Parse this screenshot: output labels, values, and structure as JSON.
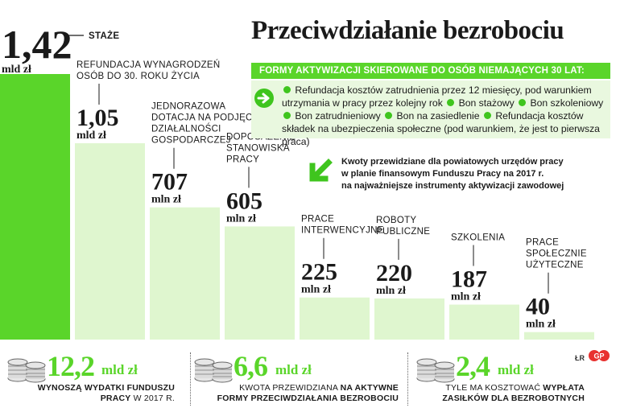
{
  "title": "Przeciwdziałanie bezrobociu",
  "colors": {
    "accent": "#5ad52a",
    "bar_first": "#5ad52a",
    "bar": "#dff6cf",
    "box": "#e9f8df"
  },
  "chart_data": {
    "type": "bar",
    "unit_note": "values in mln zł",
    "categories": [
      "STAŻE",
      "REFUNDACJA WYNAGRODZEŃ OSÓB DO 30. ROKU ŻYCIA",
      "JEDNORAZOWA DOTACJA NA PODJĘCIE DZIAŁALNOŚCI GOSPODARCZEJ",
      "DOPOSAŻENIE STANOWISKA PRACY",
      "PRACE INTERWENCYJNE",
      "ROBOTY PUBLICZNE",
      "SZKOLENIA",
      "PRACE SPOŁECZNIE UŻYTECZNE"
    ],
    "values": [
      1420,
      1050,
      707,
      605,
      225,
      220,
      187,
      40
    ],
    "bars": [
      {
        "label_lines": [
          "STAŻE"
        ],
        "value_text": "1,42",
        "unit": "mld zł"
      },
      {
        "label_lines": [
          "REFUNDACJA WYNAGRODZEŃ",
          "OSÓB DO 30. ROKU ŻYCIA"
        ],
        "value_text": "1,05",
        "unit": "mld zł"
      },
      {
        "label_lines": [
          "JEDNORAZOWA",
          "DOTACJA NA PODJĘCIE",
          "DZIAŁALNOŚCI",
          "GOSPODARCZEJ"
        ],
        "value_text": "707",
        "unit": "mln zł"
      },
      {
        "label_lines": [
          "DOPOSAŻENIE",
          "STANOWISKA",
          "PRACY"
        ],
        "value_text": "605",
        "unit": "mln zł"
      },
      {
        "label_lines": [
          "PRACE",
          "INTERWENCYJNE"
        ],
        "value_text": "225",
        "unit": "mln zł"
      },
      {
        "label_lines": [
          "ROBOTY",
          "PUBLICZNE"
        ],
        "value_text": "220",
        "unit": "mln zł"
      },
      {
        "label_lines": [
          "SZKOLENIA"
        ],
        "value_text": "187",
        "unit": "mln zł"
      },
      {
        "label_lines": [
          "PRACE",
          "SPOŁECZNIE",
          "UŻYTECZNE"
        ],
        "value_text": "40",
        "unit": "mln zł"
      }
    ]
  },
  "banner": "FORMY AKTYWIZACJI SKIEROWANE DO OSÓB NIEMAJĄCYCH 30 LAT:",
  "info_items": [
    "Refundacja kosztów zatrudnienia przez 12 miesięcy, pod warunkiem utrzymania w pracy przez kolejny rok",
    "Bon stażowy",
    "Bon szkoleniowy",
    "Bon zatrudnieniowy",
    "Bon na zasiedlenie",
    "Refundacja kosztów składek na ubezpieczenia społeczne (pod warunkiem, że jest to pierwsza praca)"
  ],
  "note_lines": [
    "Kwoty przewidziane dla powiatowych urzędów pracy",
    "w planie finansowym Funduszu Pracy na 2017 r.",
    "na najważniejsze instrumenty aktywizacji zawodowej"
  ],
  "stats": [
    {
      "value": "12,2",
      "unit": "mld zł",
      "desc_line1_bold": "WYNOSZĄ WYDATKI FUNDUSZU",
      "desc_line2_bold": "PRACY",
      "desc_line2_rest": " W 2017 R."
    },
    {
      "value": "6,6",
      "unit": "mld zł",
      "desc_line1_pre": "KWOTA PRZEWIDZIANA ",
      "desc_line1_bold": "NA AKTYWNE",
      "desc_line2_bold": "FORMY PRZECIWDZIAŁANIA BEZROBOCIU"
    },
    {
      "value": "2,4",
      "unit": "mld zł",
      "desc_line1_pre": "TYLE MA KOSZTOWAĆ ",
      "desc_line1_bold": "WYPŁATA",
      "desc_line2_bold": "ZASIŁKÓW DLA BEZROBOTNYCH"
    }
  ],
  "credit": "ŁR",
  "logo_text": "GP",
  "icons": {
    "arrow": "arrow-right-icon",
    "note": "arrow-down-left-icon",
    "coins": "coins-icon"
  }
}
